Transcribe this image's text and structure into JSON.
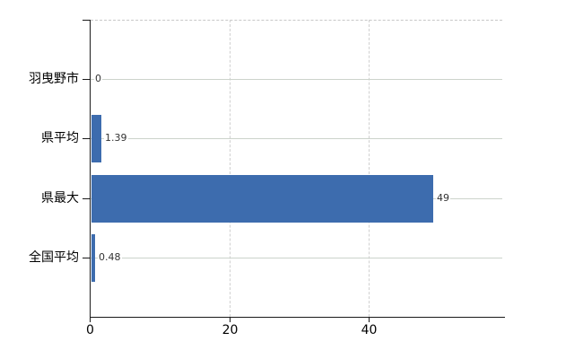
{
  "chart_data": {
    "type": "bar",
    "orientation": "horizontal",
    "title": "",
    "categories": [
      "羽曳野市",
      "県平均",
      "県最大",
      "全国平均"
    ],
    "values": [
      0,
      1.39,
      49,
      0.48
    ],
    "value_labels": [
      "0",
      "1.39",
      "49",
      "0.48"
    ],
    "x_ticks": [
      0,
      20,
      40
    ],
    "x_tick_labels": [
      "0",
      "20",
      "40"
    ],
    "xlim": [
      0,
      59
    ],
    "grid": true,
    "legend_position": "none",
    "colors": {
      "bar": "#3d6cae",
      "grid_horizontal": "#ccd3cb",
      "grid_vertical": "#d0d0d0",
      "top_border": "#c8c8c8",
      "axis": "#1a1a1a",
      "category_text": "#000000",
      "value_text": "#333333",
      "tick_text": "#000000"
    }
  }
}
